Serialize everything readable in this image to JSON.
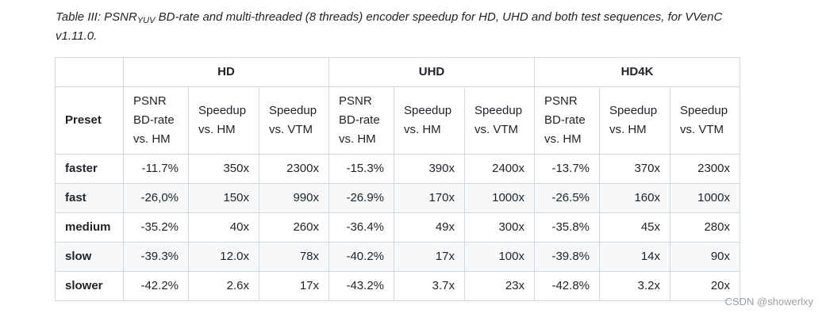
{
  "caption": {
    "prefix": "Table III: PSNR",
    "sub": "YUV",
    "suffix": " BD-rate and multi-threaded (8 threads) encoder speedup for HD, UHD and both test sequences, for VVenC v1.11.0."
  },
  "table": {
    "groups": [
      "HD",
      "UHD",
      "HD4K"
    ],
    "preset_header": "Preset",
    "sub_headers": [
      "PSNR BD-rate vs. HM",
      "Speedup vs. HM",
      "Speedup vs. VTM"
    ],
    "rows": [
      {
        "name": "faster",
        "cells": [
          "-11.7%",
          "350x",
          "2300x",
          "-15.3%",
          "390x",
          "2400x",
          "-13.7%",
          "370x",
          "2300x"
        ]
      },
      {
        "name": "fast",
        "cells": [
          "-26,0%",
          "150x",
          "990x",
          "-26.9%",
          "170x",
          "1000x",
          "-26.5%",
          "160x",
          "1000x"
        ]
      },
      {
        "name": "medium",
        "cells": [
          "-35.2%",
          "40x",
          "260x",
          "-36.4%",
          "49x",
          "300x",
          "-35.8%",
          "45x",
          "280x"
        ]
      },
      {
        "name": "slow",
        "cells": [
          "-39.3%",
          "12.0x",
          "78x",
          "-40.2%",
          "17x",
          "100x",
          "-39.8%",
          "14x",
          "90x"
        ]
      },
      {
        "name": "slower",
        "cells": [
          "-42.2%",
          "2.6x",
          "17x",
          "-43.2%",
          "3.7x",
          "23x",
          "-42.8%",
          "3.2x",
          "20x"
        ]
      }
    ]
  },
  "watermark": "CSDN @showerlxy"
}
